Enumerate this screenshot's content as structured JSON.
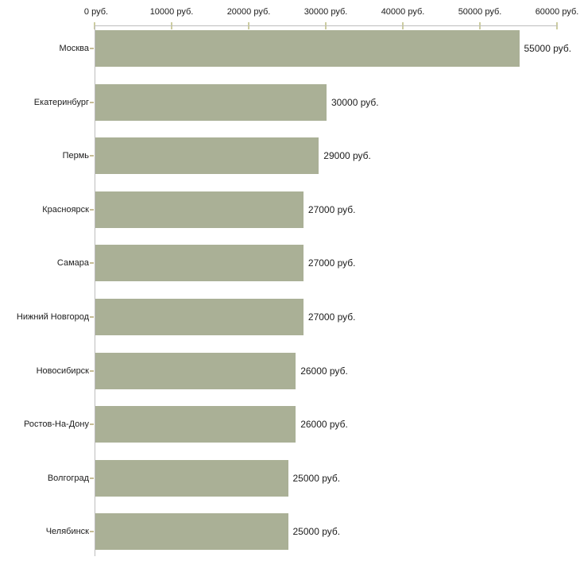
{
  "chart_data": {
    "type": "bar",
    "orientation": "horizontal",
    "title": "",
    "xlabel": "",
    "ylabel": "",
    "categories": [
      "Москва",
      "Екатеринбург",
      "Пермь",
      "Красноярск",
      "Самара",
      "Нижний Новгород",
      "Новосибирск",
      "Ростов-На-Дону",
      "Волгоград",
      "Челябинск"
    ],
    "values": [
      55000,
      30000,
      29000,
      27000,
      27000,
      27000,
      26000,
      26000,
      25000,
      25000
    ],
    "value_labels": [
      "55000 руб.",
      "30000 руб.",
      "29000 руб.",
      "27000 руб.",
      "27000 руб.",
      "27000 руб.",
      "26000 руб.",
      "26000 руб.",
      "25000 руб.",
      "25000 руб."
    ],
    "x_ticks": [
      0,
      10000,
      20000,
      30000,
      40000,
      50000,
      60000
    ],
    "x_tick_labels": [
      "0 руб.",
      "10000 руб.",
      "20000 руб.",
      "30000 руб.",
      "40000 руб.",
      "50000 руб.",
      "60000 руб."
    ],
    "xlim": [
      0,
      60000
    ],
    "grid": false,
    "legend": false,
    "axis_position": "top",
    "colors": {
      "bar": "#aab096",
      "axis_line": "#bdbdbd",
      "axis_tick": "#cdcda0",
      "category_tick": "#c6bd96",
      "text": "#1c1c1c",
      "background": "#ffffff"
    }
  }
}
